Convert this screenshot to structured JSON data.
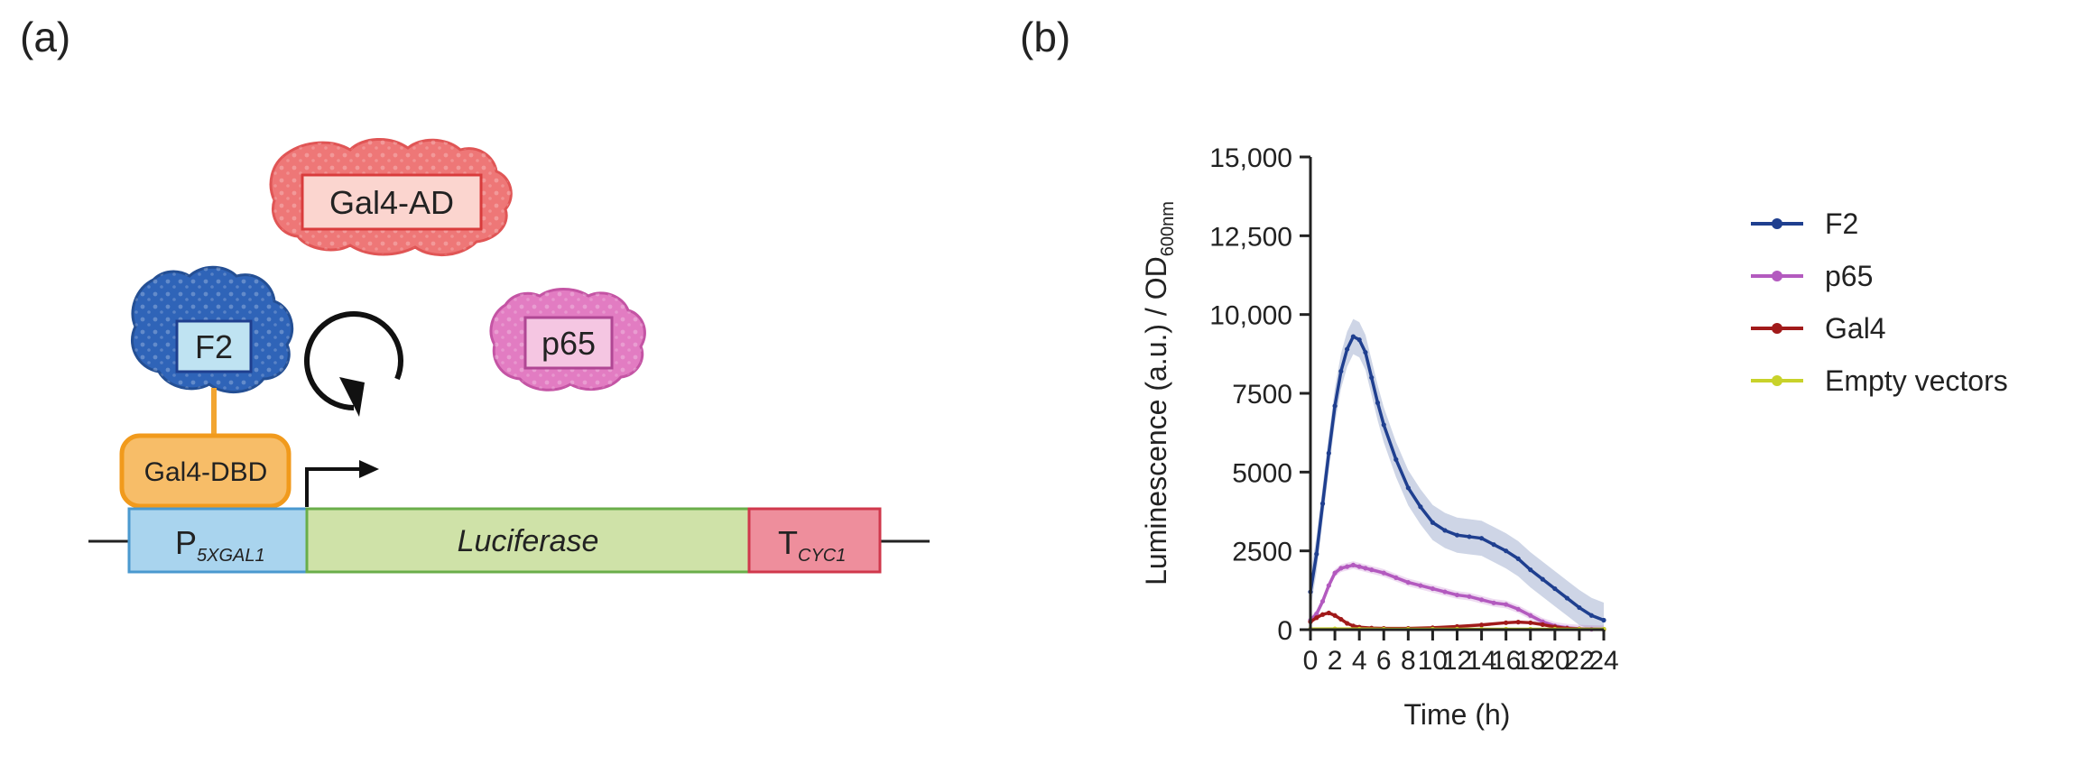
{
  "panel_a": {
    "label": "(a)",
    "proteins": {
      "gal4_ad": "Gal4-AD",
      "f2": "F2",
      "p65": "p65",
      "gal4_dbd": "Gal4-DBD"
    },
    "construct": {
      "promoter_main": "P",
      "promoter_sub": "5XGAL1",
      "gene": "Luciferase",
      "terminator_main": "T",
      "terminator_sub": "CYC1"
    },
    "colors": {
      "f2": "#2f5fae",
      "gal4_ad": "#ee6f6f",
      "p65": "#e07ac0",
      "gal4_dbd": "#f6b45a",
      "promoter": "#a9d3ec",
      "gene": "#cde0a4",
      "terminator": "#ec8a98"
    }
  },
  "panel_b": {
    "label": "(b)"
  },
  "chart_data": {
    "type": "line",
    "xlabel": "Time (h)",
    "ylabel_main": "Luminescence (a.u.) / OD",
    "ylabel_sub": "600nm",
    "xlim": [
      0,
      24
    ],
    "ylim": [
      0,
      15000
    ],
    "xticks": [
      0,
      2,
      4,
      6,
      8,
      10,
      12,
      14,
      16,
      18,
      20,
      22,
      24
    ],
    "yticks": [
      0,
      2500,
      5000,
      7500,
      10000,
      12500,
      15000
    ],
    "ytick_labels": [
      "0",
      "2500",
      "5000",
      "7500",
      "10,000",
      "12,500",
      "15,000"
    ],
    "legend_position": "top-right",
    "series": [
      {
        "name": "F2",
        "color": "#1f3f8f",
        "x": [
          0,
          0.5,
          1,
          1.5,
          2,
          2.5,
          3,
          3.5,
          4,
          4.5,
          5,
          5.5,
          6,
          7,
          8,
          9,
          10,
          11,
          12,
          13,
          14,
          15,
          16,
          17,
          18,
          19,
          20,
          21,
          22,
          23,
          24
        ],
        "y": [
          1200,
          2400,
          4000,
          5600,
          7100,
          8200,
          8900,
          9300,
          9200,
          8800,
          8000,
          7200,
          6500,
          5400,
          4500,
          3900,
          3400,
          3150,
          3000,
          2950,
          2900,
          2700,
          2500,
          2250,
          1900,
          1600,
          1300,
          1000,
          700,
          450,
          300
        ]
      },
      {
        "name": "p65",
        "color": "#b35abf",
        "x": [
          0,
          0.5,
          1,
          1.5,
          2,
          2.5,
          3,
          3.5,
          4,
          4.5,
          5,
          6,
          7,
          8,
          9,
          10,
          11,
          12,
          13,
          14,
          15,
          16,
          17,
          18,
          19,
          20,
          21,
          22,
          23,
          24
        ],
        "y": [
          300,
          500,
          900,
          1400,
          1800,
          1950,
          2000,
          2050,
          2000,
          1950,
          1900,
          1800,
          1650,
          1500,
          1400,
          1300,
          1200,
          1100,
          1050,
          950,
          850,
          800,
          650,
          450,
          250,
          120,
          60,
          30,
          15,
          10
        ]
      },
      {
        "name": "Gal4",
        "color": "#a11a1a",
        "x": [
          0,
          0.5,
          1,
          1.5,
          2,
          2.5,
          3,
          3.5,
          4,
          5,
          6,
          8,
          10,
          12,
          14,
          16,
          17,
          18,
          19,
          20,
          21,
          22,
          24
        ],
        "y": [
          250,
          380,
          480,
          530,
          450,
          330,
          200,
          120,
          80,
          50,
          40,
          40,
          60,
          100,
          150,
          220,
          240,
          220,
          160,
          90,
          40,
          20,
          10
        ]
      },
      {
        "name": "Empty vectors",
        "color": "#c8d22a",
        "x": [
          0,
          2,
          4,
          6,
          8,
          10,
          12,
          14,
          16,
          18,
          20,
          22,
          24
        ],
        "y": [
          20,
          25,
          20,
          15,
          15,
          15,
          15,
          15,
          15,
          15,
          15,
          15,
          15
        ]
      }
    ]
  }
}
